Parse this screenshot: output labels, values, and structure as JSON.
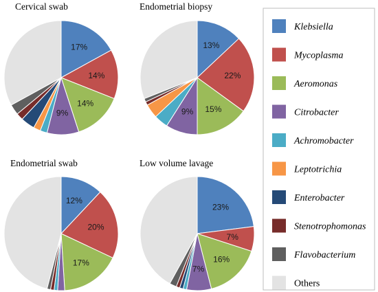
{
  "chart_data": {
    "type": "pie",
    "legend": {
      "position": "right",
      "entries": [
        {
          "name": "Klebsiella",
          "color": "#4F81BD",
          "italic": true
        },
        {
          "name": "Mycoplasma",
          "color": "#C0504D",
          "italic": true
        },
        {
          "name": "Aeromonas",
          "color": "#9BBB59",
          "italic": true
        },
        {
          "name": "Citrobacter",
          "color": "#8064A2",
          "italic": true
        },
        {
          "name": "Achromobacter",
          "color": "#4BACC6",
          "italic": true
        },
        {
          "name": "Leptotrichia",
          "color": "#F79646",
          "italic": true
        },
        {
          "name": "Enterobacter",
          "color": "#254A77",
          "italic": true
        },
        {
          "name": "Stenotrophomonas",
          "color": "#772C2A",
          "italic": true
        },
        {
          "name": "Flavobacterium",
          "color": "#5F5F5F",
          "italic": true
        },
        {
          "name": "Others",
          "color": "#E3E3E3",
          "italic": false
        }
      ]
    },
    "pies": [
      {
        "title": "Cervical swab",
        "values": [
          17,
          14,
          14,
          9,
          2,
          2,
          4,
          2,
          3,
          33
        ],
        "labels": [
          "17%",
          "14%",
          "14%",
          "9%",
          "",
          "",
          "",
          "",
          "",
          ""
        ]
      },
      {
        "title": "Endometrial biopsy",
        "values": [
          13,
          22,
          15,
          9,
          4,
          4,
          0,
          1,
          1,
          31
        ],
        "labels": [
          "13%",
          "22%",
          "15%",
          "9%",
          "",
          "",
          "",
          "",
          "",
          ""
        ]
      },
      {
        "title": "Endometrial swab",
        "values": [
          12,
          20,
          17,
          2,
          1,
          0,
          0,
          1,
          1,
          46
        ],
        "labels": [
          "12%",
          "20%",
          "17%",
          "",
          "",
          "",
          "",
          "",
          "",
          ""
        ]
      },
      {
        "title": "Low volume lavage",
        "values": [
          23,
          7,
          16,
          7,
          1,
          0,
          1,
          1,
          2,
          42
        ],
        "labels": [
          "23%",
          "7%",
          "16%",
          "7%",
          "",
          "",
          "",
          "",
          "",
          ""
        ]
      }
    ]
  }
}
